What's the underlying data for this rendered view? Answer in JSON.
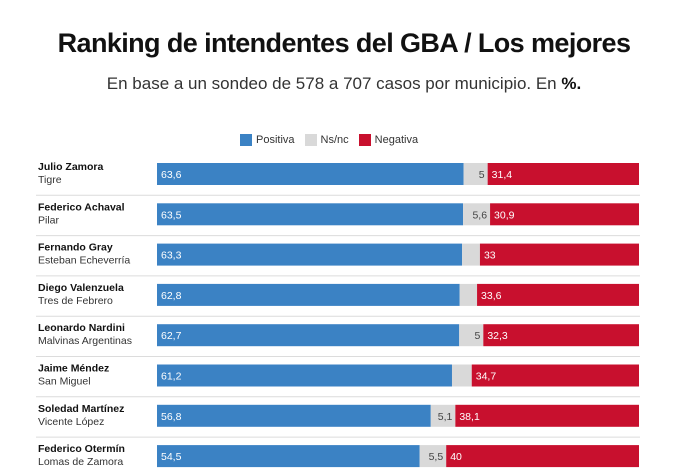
{
  "header": {
    "title": "Ranking de intendentes del GBA / Los mejores",
    "subtitle_text": "En base a un sondeo de 578 a 707 casos por municipio. En",
    "subtitle_unit": "%."
  },
  "colors": {
    "positiva": "#3b82c4",
    "nsnc": "#d9d9d9",
    "negativa": "#c8102e"
  },
  "chart_data": {
    "type": "bar",
    "orientation": "horizontal",
    "stacked": true,
    "title": "Ranking de intendentes del GBA / Los mejores",
    "subtitle": "En base a un sondeo de 578 a 707 casos por municipio. En %.",
    "legend": [
      "Positiva",
      "Ns/nc",
      "Negativa"
    ],
    "legend_position": "top",
    "rows": [
      {
        "name": "Julio Zamora",
        "municipio": "Tigre",
        "positiva": "63,6",
        "nsnc": "5",
        "negativa": "31,4"
      },
      {
        "name": "Federico Achaval",
        "municipio": "Pilar",
        "positiva": "63,5",
        "nsnc": "5,6",
        "negativa": "30,9"
      },
      {
        "name": "Fernando Gray",
        "municipio": "Esteban Echeverría",
        "positiva": "63,3",
        "nsnc": "",
        "negativa": "33"
      },
      {
        "name": "Diego Valenzuela",
        "municipio": "Tres de Febrero",
        "positiva": "62,8",
        "nsnc": "",
        "negativa": "33,6"
      },
      {
        "name": "Leonardo Nardini",
        "municipio": "Malvinas Argentinas",
        "positiva": "62,7",
        "nsnc": "5",
        "negativa": "32,3"
      },
      {
        "name": "Jaime Méndez",
        "municipio": "San Miguel",
        "positiva": "61,2",
        "nsnc": "",
        "negativa": "34,7"
      },
      {
        "name": "Soledad Martínez",
        "municipio": "Vicente López",
        "positiva": "56,8",
        "nsnc": "5,1",
        "negativa": "38,1"
      },
      {
        "name": "Federico Otermín",
        "municipio": "Lomas de Zamora",
        "positiva": "54,5",
        "nsnc": "5,5",
        "negativa": "40"
      }
    ]
  }
}
